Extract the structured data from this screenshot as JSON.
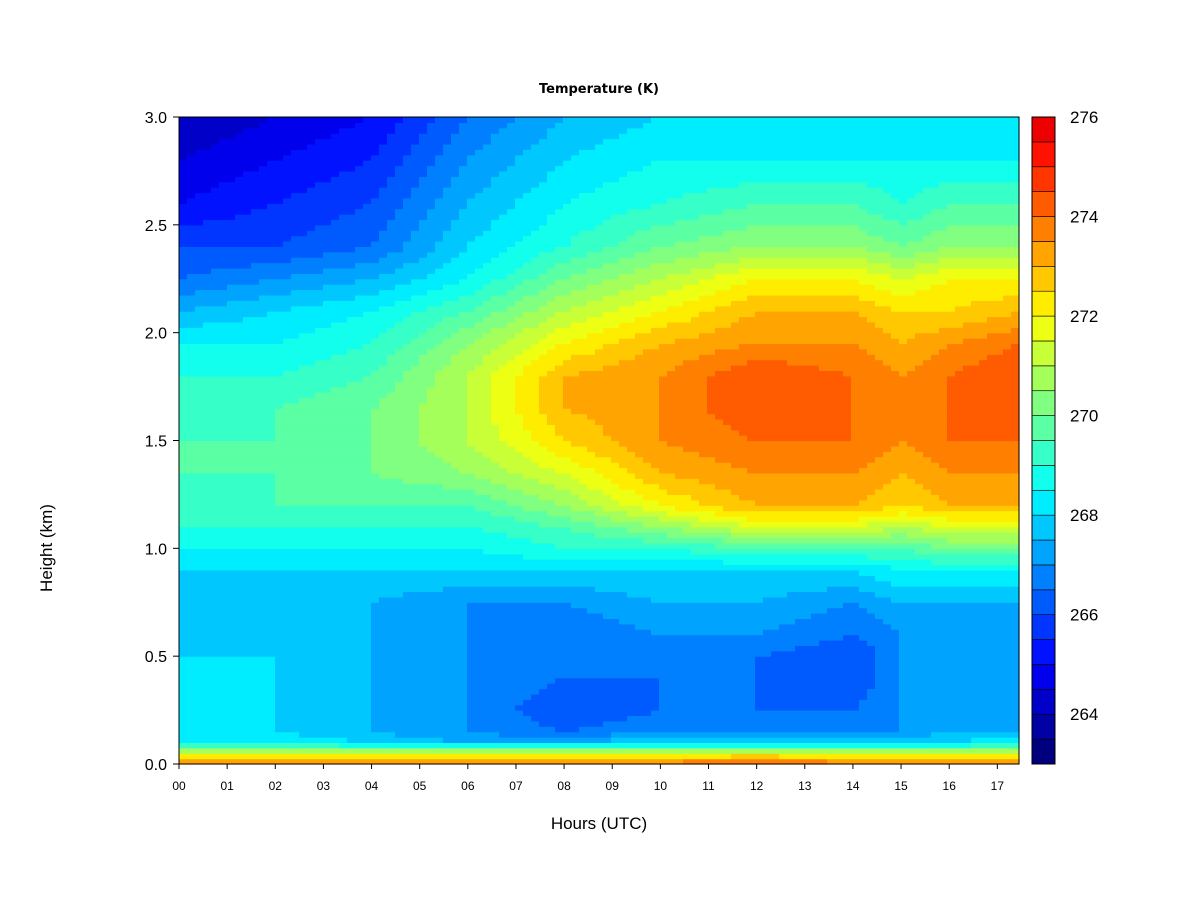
{
  "chart_data": {
    "type": "heatmap",
    "title": "Temperature (K)",
    "xlabel": "Hours (UTC)",
    "ylabel": "Height (km)",
    "xlim": [
      0,
      17.45
    ],
    "ylim": [
      0,
      3.0
    ],
    "x_ticks": [
      "00",
      "01",
      "02",
      "03",
      "04",
      "05",
      "06",
      "07",
      "08",
      "09",
      "10",
      "11",
      "12",
      "13",
      "14",
      "15",
      "16",
      "17"
    ],
    "y_ticks": [
      "0.0",
      "0.5",
      "1.0",
      "1.5",
      "2.0",
      "2.5",
      "3.0"
    ],
    "colorbar": {
      "min": 263,
      "max": 276,
      "step": 0.5,
      "tick_labels": [
        "264",
        "266",
        "268",
        "270",
        "272",
        "274",
        "276"
      ],
      "colors": [
        "#00007F",
        "#0000A4",
        "#0000C8",
        "#0000ED",
        "#0012FF",
        "#0036FF",
        "#005BFF",
        "#0080FF",
        "#00A4FF",
        "#00C8FF",
        "#00EDFF",
        "#12FFED",
        "#36FFC8",
        "#5BFFA4",
        "#80FF80",
        "#A4FF5B",
        "#C8FF36",
        "#EDFF12",
        "#FFED00",
        "#FFC800",
        "#FFA400",
        "#FF8000",
        "#FF5B00",
        "#FF3600",
        "#FF1200",
        "#ED0000",
        "#C80000",
        "#A40000"
      ]
    },
    "profile_heights_km": [
      0.0,
      0.05,
      0.1,
      0.15,
      0.25,
      0.4,
      0.5,
      0.6,
      0.75,
      0.9,
      1.0,
      1.1,
      1.2,
      1.35,
      1.5,
      1.65,
      1.8,
      1.95,
      2.1,
      2.25,
      2.4,
      2.6,
      2.8,
      3.0
    ],
    "profile_hours": [
      0,
      2,
      4,
      6,
      8,
      10,
      12,
      14,
      15,
      16,
      17.45
    ],
    "temperature_K": [
      [
        274.0,
        274.0,
        274.0,
        274.0,
        274.0,
        274.0,
        274.5,
        274.0,
        274.0,
        274.0,
        274.0
      ],
      [
        271.5,
        271.5,
        271.5,
        271.5,
        271.5,
        271.5,
        272.0,
        271.5,
        271.5,
        271.5,
        271.5
      ],
      [
        268.5,
        268.5,
        268.0,
        267.5,
        267.5,
        268.0,
        268.0,
        268.0,
        268.0,
        268.0,
        268.5
      ],
      [
        268.0,
        268.0,
        267.5,
        267.0,
        266.5,
        267.0,
        267.0,
        267.0,
        267.0,
        267.5,
        267.5
      ],
      [
        268.0,
        268.0,
        267.5,
        267.0,
        266.0,
        266.5,
        266.5,
        266.5,
        267.0,
        267.0,
        267.0
      ],
      [
        268.0,
        268.0,
        267.5,
        267.0,
        266.5,
        266.5,
        266.5,
        266.0,
        267.0,
        267.0,
        267.0
      ],
      [
        268.0,
        268.0,
        267.5,
        267.0,
        266.5,
        266.5,
        266.5,
        266.0,
        267.0,
        267.0,
        267.0
      ],
      [
        268.0,
        267.5,
        267.5,
        267.0,
        266.5,
        267.0,
        267.0,
        266.5,
        267.0,
        267.0,
        267.0
      ],
      [
        268.0,
        267.5,
        267.5,
        267.0,
        267.0,
        267.5,
        267.5,
        267.0,
        267.5,
        267.5,
        267.5
      ],
      [
        268.0,
        268.0,
        268.0,
        268.0,
        268.0,
        268.0,
        268.0,
        268.0,
        268.5,
        268.5,
        268.5
      ],
      [
        268.5,
        268.5,
        268.5,
        268.5,
        269.0,
        269.0,
        269.5,
        269.5,
        269.5,
        270.0,
        270.0
      ],
      [
        269.0,
        269.0,
        269.0,
        269.0,
        269.5,
        270.5,
        271.5,
        271.5,
        271.0,
        271.5,
        271.5
      ],
      [
        269.0,
        269.5,
        269.5,
        269.5,
        270.5,
        272.0,
        273.0,
        273.0,
        272.5,
        273.0,
        273.0
      ],
      [
        269.5,
        269.5,
        270.0,
        270.5,
        271.5,
        273.0,
        273.5,
        273.5,
        273.0,
        273.5,
        273.5
      ],
      [
        269.5,
        269.5,
        270.0,
        271.0,
        272.5,
        273.5,
        274.0,
        274.0,
        273.5,
        274.0,
        274.0
      ],
      [
        269.0,
        269.5,
        270.0,
        271.0,
        273.0,
        273.5,
        274.5,
        274.0,
        273.5,
        274.0,
        274.5
      ],
      [
        269.0,
        269.0,
        269.5,
        271.0,
        273.0,
        273.5,
        274.5,
        274.0,
        273.5,
        274.0,
        274.5
      ],
      [
        268.5,
        268.5,
        269.0,
        270.5,
        272.0,
        273.0,
        273.5,
        273.5,
        273.0,
        273.5,
        274.0
      ],
      [
        267.5,
        268.0,
        268.5,
        269.5,
        271.0,
        272.0,
        273.0,
        273.0,
        272.5,
        272.5,
        273.0
      ],
      [
        266.5,
        267.0,
        267.5,
        268.5,
        270.0,
        271.0,
        272.0,
        272.0,
        271.5,
        272.0,
        272.0
      ],
      [
        266.0,
        266.0,
        266.5,
        268.0,
        269.0,
        270.0,
        270.5,
        270.5,
        270.0,
        270.5,
        270.5
      ],
      [
        265.0,
        265.5,
        266.0,
        267.5,
        268.5,
        269.0,
        269.5,
        269.5,
        269.0,
        269.5,
        269.5
      ],
      [
        264.5,
        265.0,
        265.5,
        267.0,
        268.0,
        268.5,
        268.5,
        268.5,
        268.5,
        268.5,
        268.5
      ],
      [
        264.0,
        264.5,
        265.0,
        266.5,
        267.5,
        268.0,
        268.0,
        268.0,
        268.0,
        268.0,
        268.0
      ]
    ]
  }
}
